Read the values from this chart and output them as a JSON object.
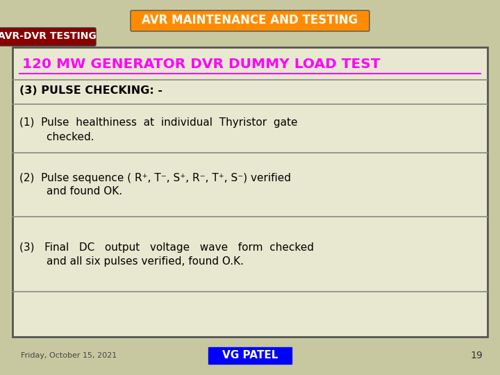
{
  "bg_color": "#c8c8a0",
  "title_text": "AVR MAINTENANCE AND TESTING",
  "title_bg": "#ff8c00",
  "title_color": "#ffffff",
  "subtitle_text": "AVR-DVR TESTING",
  "subtitle_bg": "#8b0000",
  "subtitle_color": "#ffffff",
  "main_title": "120 MW GENERATOR DVR DUMMY LOAD TEST",
  "main_title_color": "#ff00ff",
  "box_bg": "#e8e8d0",
  "box_border": "#555555",
  "section_label": "(3) PULSE CHECKING: -",
  "item1_line1": "(1)  Pulse  healthiness  at  individual  Thyristor  gate",
  "item1_line2": "        checked.",
  "item2_line1": "(2)  Pulse sequence ( R⁺, T⁻, S⁺, R⁻, T⁺, S⁻) verified",
  "item2_line2": "        and found OK.",
  "item3_line1": "(3)   Final   DC   output   voltage   wave   form  checked",
  "item3_line2": "        and all six pulses verified, found O.K.",
  "footer_date": "Friday, October 15, 2021",
  "footer_label": "VG PATEL",
  "footer_label_bg": "#0000ff",
  "footer_label_color": "#ffffff",
  "footer_number": "19",
  "text_color": "#000000",
  "divider_color": "#888888"
}
